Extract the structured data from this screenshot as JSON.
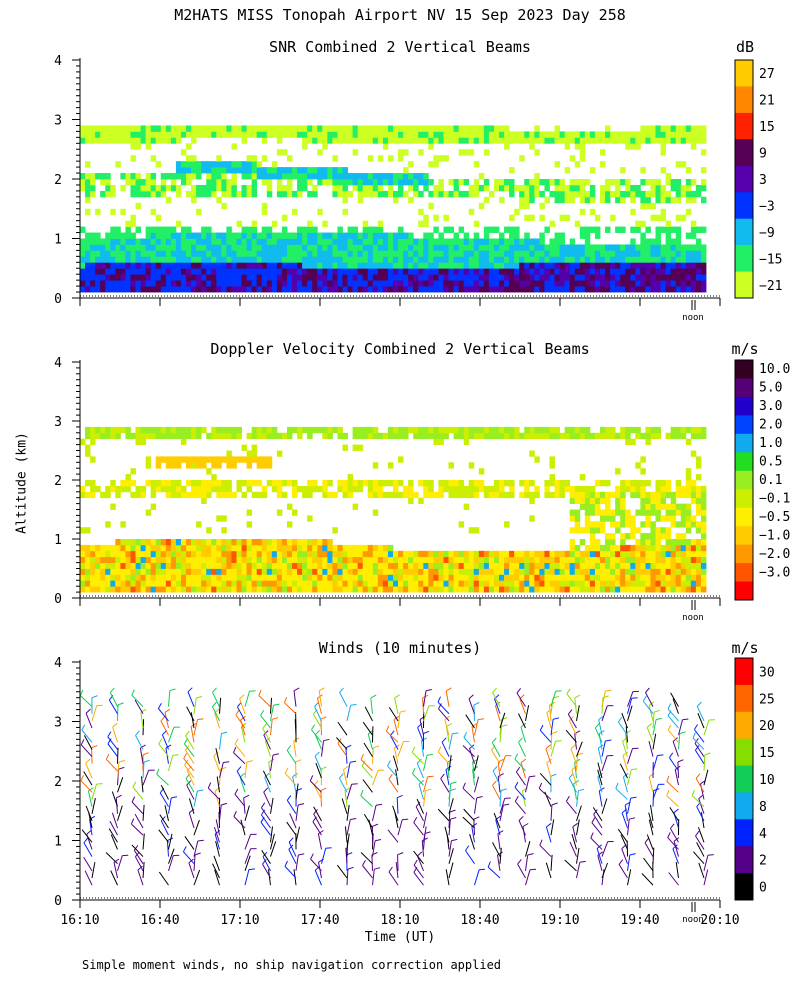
{
  "page_title": "M2HATS MISS Tonopah Airport NV  15 Sep 2023 Day 258",
  "y_axis_title": "Altitude (km)",
  "x_axis_title": "Time (UT)",
  "footnote": "Simple moment winds, no ship navigation correction applied",
  "noon_label": "noon",
  "chart_data": [
    {
      "type": "heatmap",
      "title": "SNR Combined 2 Vertical Beams",
      "unit": "dB",
      "ylabel": "Altitude (km)",
      "ylim": [
        0,
        4
      ],
      "yticks": [
        "0",
        "1",
        "2",
        "3",
        "4"
      ],
      "colorbar": {
        "labels": [
          "27",
          "21",
          "15",
          "9",
          "3",
          "−3",
          "−9",
          "−15",
          "−21"
        ],
        "colors": [
          "#ffcc00",
          "#ff8800",
          "#ff2200",
          "#550055",
          "#5500aa",
          "#0033ff",
          "#11bbee",
          "#22ee66",
          "#ccff22"
        ]
      },
      "layers": [
        {
          "alt": 2.75,
          "value": -21
        },
        {
          "alt": 2.2,
          "value": -9
        },
        {
          "alt": 1.9,
          "value": -15
        },
        {
          "alt": 0.9,
          "value": -15
        },
        {
          "alt": 0.5,
          "value": -9
        },
        {
          "alt": 0.3,
          "value": 3
        }
      ]
    },
    {
      "type": "heatmap",
      "title": "Doppler Velocity Combined 2 Vertical Beams",
      "unit": "m/s",
      "ylabel": "Altitude (km)",
      "ylim": [
        0,
        4
      ],
      "yticks": [
        "0",
        "1",
        "2",
        "3",
        "4"
      ],
      "colorbar": {
        "labels": [
          "10.0",
          "5.0",
          "3.0",
          "2.0",
          "1.0",
          "0.5",
          "0.1",
          "−0.1",
          "−0.5",
          "−1.0",
          "−2.0",
          "−3.0"
        ],
        "colors": [
          "#330022",
          "#550077",
          "#2200cc",
          "#0044ff",
          "#11aaee",
          "#22dd22",
          "#99ee22",
          "#ccee00",
          "#ffee00",
          "#ffcc00",
          "#ff9900",
          "#ff5500",
          "#ff0000"
        ]
      },
      "layers": [
        {
          "alt": 2.8,
          "value": 0.1
        },
        {
          "alt": 2.3,
          "value": -0.5
        },
        {
          "alt": 1.9,
          "value": -0.1
        },
        {
          "alt": 0.5,
          "value": -0.5
        }
      ]
    },
    {
      "type": "scatter",
      "title": "Winds (10 minutes)",
      "unit": "m/s",
      "ylabel": "Altitude (km)",
      "xlabel": "Time (UT)",
      "ylim": [
        0,
        4
      ],
      "yticks": [
        "0",
        "1",
        "2",
        "3",
        "4"
      ],
      "xticks": [
        "16:10",
        "16:40",
        "17:10",
        "17:40",
        "18:10",
        "18:40",
        "19:10",
        "19:40",
        "20:10"
      ],
      "colorbar": {
        "labels": [
          "30",
          "25",
          "20",
          "15",
          "10",
          "8",
          "4",
          "2",
          "0"
        ],
        "colors": [
          "#ff0000",
          "#ff6600",
          "#ffaa00",
          "#88dd00",
          "#11cc55",
          "#11aaee",
          "#0022ff",
          "#550088",
          "#000000"
        ]
      }
    }
  ]
}
